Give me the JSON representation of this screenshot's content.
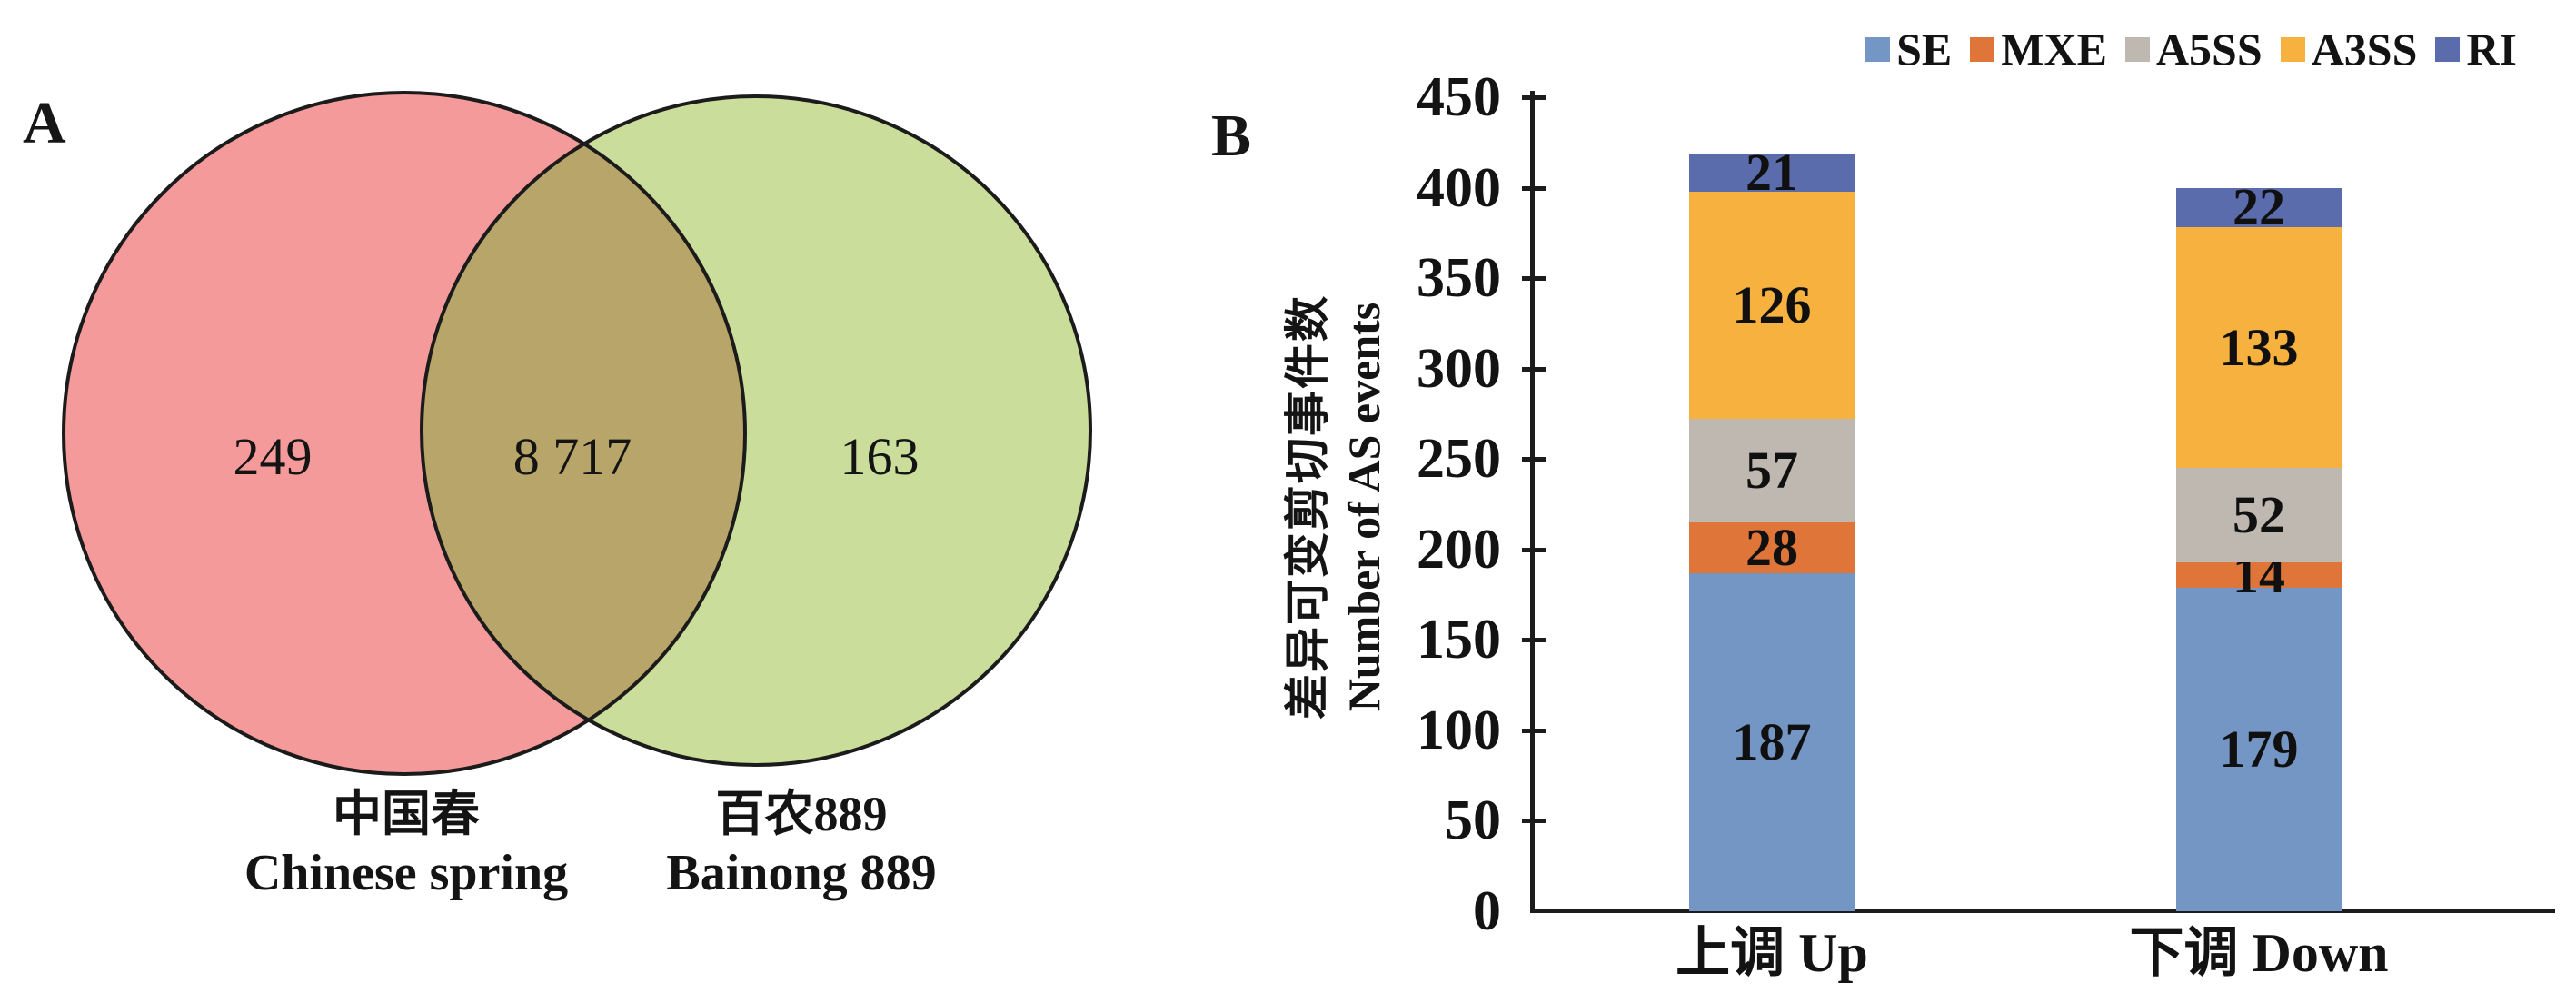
{
  "panels": {
    "a_label": "A",
    "b_label": "B"
  },
  "venn": {
    "left_only_display": "249",
    "intersection_display": "8 717",
    "right_only_display": "163",
    "left_label_zh": "中国春",
    "left_label_en": "Chinese spring",
    "right_label_zh": "百农889",
    "right_label_en": "Bainong 889",
    "left_color": "#f49a9b",
    "right_color": "#cbdd9a",
    "overlap_color": "#b8a56a",
    "outline_color": "#1b1b1b"
  },
  "chart_data": [
    {
      "type": "venn",
      "sets": [
        {
          "label_zh": "中国春",
          "label_en": "Chinese spring",
          "unique": 249
        },
        {
          "label_zh": "百农889",
          "label_en": "Bainong 889",
          "unique": 163
        }
      ],
      "intersection": 8717,
      "intersection_display": "8 717"
    },
    {
      "type": "bar",
      "stacked": true,
      "categories": [
        "上调 Up",
        "下调 Down"
      ],
      "series": [
        {
          "name": "SE",
          "color": "#7496c4",
          "values": [
            187,
            179
          ]
        },
        {
          "name": "MXE",
          "color": "#e0753a",
          "values": [
            28,
            14
          ]
        },
        {
          "name": "A5SS",
          "color": "#bfb8b1",
          "values": [
            57,
            52
          ]
        },
        {
          "name": "A3SS",
          "color": "#f6b13e",
          "values": [
            126,
            133
          ]
        },
        {
          "name": "RI",
          "color": "#5b6cad",
          "values": [
            21,
            22
          ]
        }
      ],
      "ylabel_zh": "差异可变剪切事件数",
      "ylabel_en": "Number of AS events",
      "ylim": [
        0,
        450
      ],
      "ytick_step": 50,
      "grid": false,
      "legend_position": "top-right"
    }
  ]
}
